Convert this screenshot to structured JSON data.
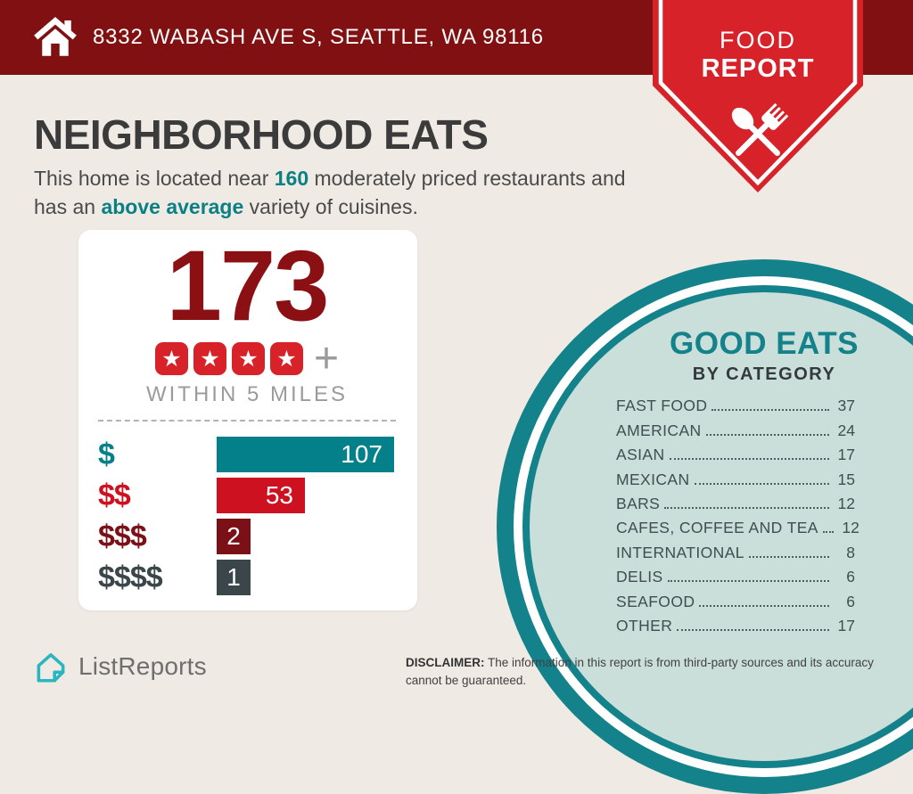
{
  "header": {
    "address": "8332 WABASH AVE S, SEATTLE, WA 98116"
  },
  "ribbon": {
    "line1": "FOOD",
    "line2": "REPORT"
  },
  "main": {
    "title": "NEIGHBORHOOD EATS",
    "intro": {
      "line1_pre": "This home is located near ",
      "line1_count": "160",
      "line1_post": " moderately priced restaurants and",
      "line2_pre": "has an ",
      "line2_highlight": "above average",
      "line2_post": " variety of cuisines."
    }
  },
  "summary_card": {
    "total": "173",
    "stars": 4,
    "star_glyph": "★",
    "plus": "+",
    "caption": "WITHIN 5 MILES"
  },
  "chart_data": {
    "type": "bar",
    "orientation": "horizontal",
    "categories": [
      "$",
      "$$",
      "$$$",
      "$$$$"
    ],
    "values": [
      107,
      53,
      2,
      1
    ],
    "colors": [
      "#04808a",
      "#ce1120",
      "#7b1116",
      "#3a4649"
    ],
    "xlim": [
      0,
      107
    ],
    "value_labels": [
      "107",
      "53",
      "2",
      "1"
    ]
  },
  "good_eats": {
    "title": "GOOD EATS",
    "subtitle": "BY CATEGORY",
    "items": [
      {
        "label": "FAST FOOD",
        "value": 37
      },
      {
        "label": "AMERICAN",
        "value": 24
      },
      {
        "label": "ASIAN",
        "value": 17
      },
      {
        "label": "MEXICAN",
        "value": 15
      },
      {
        "label": "BARS",
        "value": 12
      },
      {
        "label": "CAFES, COFFEE AND TEA",
        "value": 12
      },
      {
        "label": "INTERNATIONAL",
        "value": 8
      },
      {
        "label": "DELIS",
        "value": 6
      },
      {
        "label": "SEAFOOD",
        "value": 6
      },
      {
        "label": "OTHER",
        "value": 17
      }
    ]
  },
  "footer": {
    "brand": "ListReports",
    "disclaimer_label": "DISCLAIMER:",
    "disclaimer_text": " The information in this report is from third-party sources and its accuracy cannot be guaranteed."
  },
  "palette": {
    "page_bg": "#efeae3",
    "header_bg": "#801011",
    "ribbon_red": "#d7222a",
    "teal": "#13828a",
    "teal_text": "#0b8084",
    "dark_red": "#8a1013",
    "circle_fill": "#cadeda",
    "text_dark": "#3b3b3b",
    "gray_text": "#9b9b9b",
    "logo_teal": "#2ab6bf"
  }
}
